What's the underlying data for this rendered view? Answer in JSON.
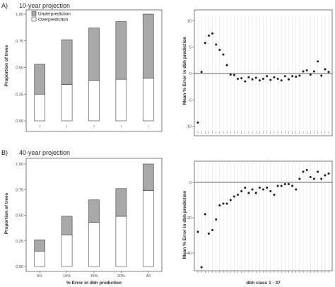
{
  "panels": {
    "A": {
      "label": "A)",
      "title": "10-year projection"
    },
    "B": {
      "label": "B)",
      "title": "40-year projection"
    }
  },
  "colors": {
    "under": "#a9a9a9",
    "over": "#ffffff",
    "stroke": "#333333",
    "grid": "#dcdcdc",
    "point": "#111111"
  },
  "chart_data": [
    {
      "id": "A-bar",
      "type": "bar",
      "stacked": true,
      "categories": [
        "5%",
        "10%",
        "15%",
        "20%",
        "All"
      ],
      "category_labels_shown": false,
      "series": [
        {
          "name": "Overprediction",
          "values": [
            0.25,
            0.34,
            0.38,
            0.39,
            0.4
          ]
        },
        {
          "name": "Underprediction",
          "values": [
            0.28,
            0.42,
            0.49,
            0.54,
            0.6
          ]
        }
      ],
      "ylabel": "Proportion of trees",
      "xlabel": "",
      "ylim": [
        0,
        1
      ],
      "yticks": [
        "0.00",
        "0.25",
        "0.50",
        "0.75",
        "1.00"
      ],
      "legend": "top-left",
      "grid": false
    },
    {
      "id": "A-scatter",
      "type": "scatter",
      "x": [
        1,
        2,
        3,
        4,
        5,
        6,
        7,
        8,
        9,
        10,
        11,
        12,
        13,
        14,
        15,
        16,
        17,
        18,
        19,
        20,
        21,
        22,
        23,
        24,
        25,
        26,
        27,
        28,
        29,
        30,
        31,
        32,
        33,
        34,
        35,
        36,
        37
      ],
      "y": [
        -9.3,
        0.3,
        5.8,
        7.2,
        7.6,
        5.5,
        4.5,
        3.6,
        1.6,
        -0.2,
        -0.3,
        -1.0,
        -0.9,
        -1.5,
        -0.7,
        -1.1,
        -0.8,
        -1.3,
        -1.0,
        -0.5,
        -1.2,
        -0.7,
        -1.0,
        -1.3,
        -0.5,
        -1.1,
        -0.5,
        -0.6,
        -0.4,
        0.4,
        0.6,
        -0.2,
        0.4,
        2.3,
        -0.4,
        0.8,
        0.3
      ],
      "ylabel": "Mean % Error in dbh prediction",
      "xlabel": "",
      "ylim": [
        -11,
        11
      ],
      "yticks": [
        "-10",
        "-5",
        "0",
        "5",
        "10"
      ],
      "hline": 0,
      "grid": true
    },
    {
      "id": "B-bar",
      "type": "bar",
      "stacked": true,
      "categories": [
        "5%",
        "10%",
        "15%",
        "20%",
        "All"
      ],
      "category_labels_shown": true,
      "series": [
        {
          "name": "Overprediction",
          "values": [
            0.15,
            0.31,
            0.43,
            0.49,
            0.74
          ]
        },
        {
          "name": "Underprediction",
          "values": [
            0.11,
            0.18,
            0.22,
            0.27,
            0.26
          ]
        }
      ],
      "ylabel": "Proportion of trees",
      "xlabel": "% Error in dbh prediction",
      "ylim": [
        0,
        1
      ],
      "yticks": [
        "0.00",
        "0.25",
        "0.50",
        "0.75",
        "1.00"
      ],
      "grid": false
    },
    {
      "id": "B-scatter",
      "type": "scatter",
      "x": [
        1,
        2,
        3,
        4,
        5,
        6,
        7,
        8,
        9,
        10,
        11,
        12,
        13,
        14,
        15,
        16,
        17,
        18,
        19,
        20,
        21,
        22,
        23,
        24,
        25,
        26,
        27,
        28,
        29,
        30,
        31,
        32,
        33,
        34,
        35,
        36,
        37
      ],
      "y": [
        -28,
        -48,
        -18,
        -29,
        -27,
        -21,
        -13,
        -12,
        -12,
        -10,
        -8,
        -7,
        -5,
        -3,
        -6,
        -4,
        -6,
        -3,
        -4,
        -3,
        -5,
        -7,
        -2,
        -2,
        -1,
        -1,
        -2,
        -4,
        2,
        6,
        7,
        3,
        2,
        6,
        2,
        4,
        5
      ],
      "ylabel": "Mean % Error in dbh prediction",
      "xlabel": "dbh class 1 - 37",
      "ylim": [
        -50,
        12
      ],
      "yticks": [
        "-40",
        "-20",
        "0"
      ],
      "hline": 0,
      "grid": true
    }
  ]
}
